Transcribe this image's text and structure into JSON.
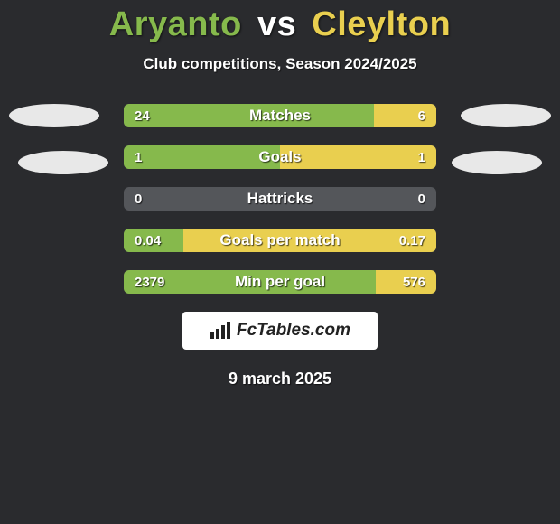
{
  "title": {
    "player1": "Aryanto",
    "vs": "vs",
    "player2": "Cleylton",
    "player1_color": "#86b94c",
    "player2_color": "#e9cf4f"
  },
  "subtitle": "Club competitions, Season 2024/2025",
  "colors": {
    "background": "#2a2b2e",
    "bar_neutral": "#54565a",
    "text": "#ffffff",
    "badge_bg": "#ffffff",
    "badge_text": "#222222"
  },
  "stats": [
    {
      "label": "Matches",
      "left_value": "24",
      "right_value": "6",
      "left_num": 24,
      "right_num": 6,
      "left_pct": 80,
      "right_pct": 20
    },
    {
      "label": "Goals",
      "left_value": "1",
      "right_value": "1",
      "left_num": 1,
      "right_num": 1,
      "left_pct": 50,
      "right_pct": 50
    },
    {
      "label": "Hattricks",
      "left_value": "0",
      "right_value": "0",
      "left_num": 0,
      "right_num": 0,
      "left_pct": 0,
      "right_pct": 0
    },
    {
      "label": "Goals per match",
      "left_value": "0.04",
      "right_value": "0.17",
      "left_num": 0.04,
      "right_num": 0.17,
      "left_pct": 19,
      "right_pct": 81
    },
    {
      "label": "Min per goal",
      "left_value": "2379",
      "right_value": "576",
      "left_num": 2379,
      "right_num": 576,
      "left_pct": 80.5,
      "right_pct": 19.5
    }
  ],
  "brand": "FcTables.com",
  "date": "9 march 2025"
}
